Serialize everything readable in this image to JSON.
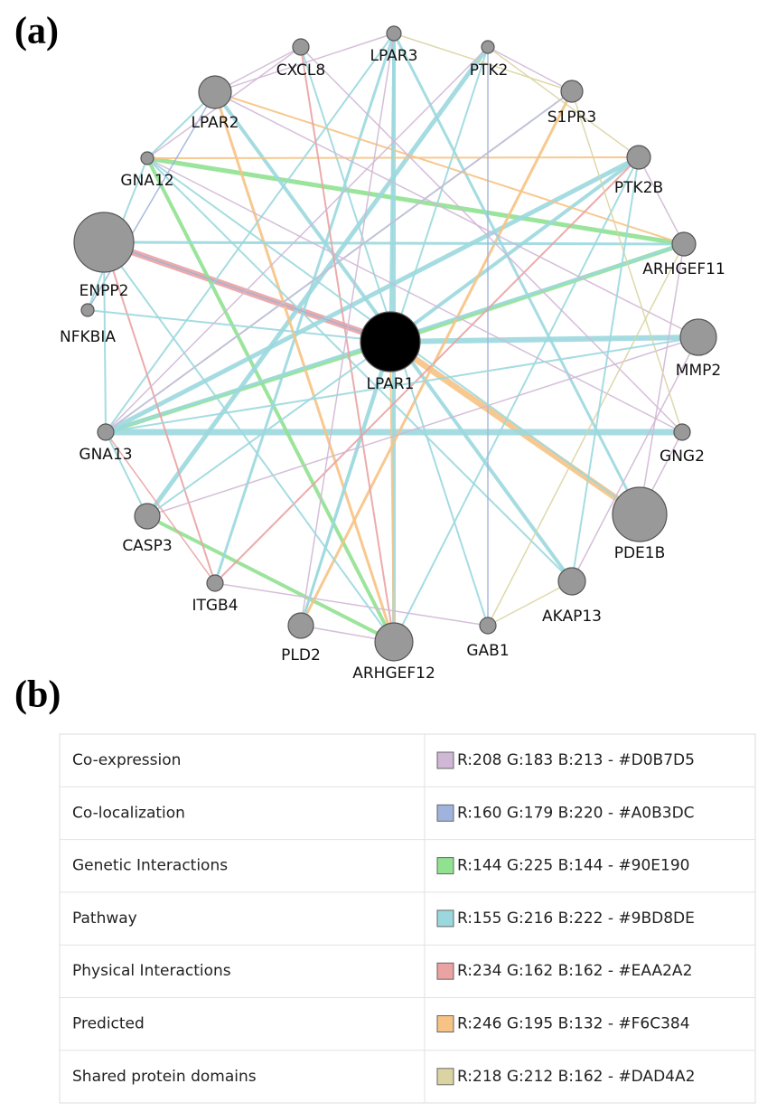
{
  "panel_a": {
    "label": "(a)",
    "nodes": [
      {
        "label": "LPAR1"
      },
      {
        "label": "LPAR3"
      },
      {
        "label": "CXCL8"
      },
      {
        "label": "PTK2"
      },
      {
        "label": "LPAR2"
      },
      {
        "label": "S1PR3"
      },
      {
        "label": "GNA12"
      },
      {
        "label": "PTK2B"
      },
      {
        "label": "ENPP2"
      },
      {
        "label": "ARHGEF11"
      },
      {
        "label": "NFKBIA"
      },
      {
        "label": "MMP2"
      },
      {
        "label": "GNA13"
      },
      {
        "label": "GNG2"
      },
      {
        "label": "CASP3"
      },
      {
        "label": "PDE1B"
      },
      {
        "label": "ITGB4"
      },
      {
        "label": "AKAP13"
      },
      {
        "label": "PLD2"
      },
      {
        "label": "GAB1"
      },
      {
        "label": "ARHGEF12"
      }
    ]
  },
  "panel_b": {
    "label": "(b)",
    "legend": [
      {
        "name": "Co-expression",
        "color": "#D0B7D5",
        "label": "R:208 G:183 B:213 - #D0B7D5"
      },
      {
        "name": "Co-localization",
        "color": "#A0B3DC",
        "label": "R:160 G:179 B:220 - #A0B3DC"
      },
      {
        "name": "Genetic Interactions",
        "color": "#90E190",
        "label": "R:144 G:225 B:144 - #90E190"
      },
      {
        "name": "Pathway",
        "color": "#9BD8DE",
        "label": "R:155 G:216 B:222 - #9BD8DE"
      },
      {
        "name": "Physical Interactions",
        "color": "#EAA2A2",
        "label": "R:234 G:162 B:162 - #EAA2A2"
      },
      {
        "name": "Predicted",
        "color": "#F6C384",
        "label": "R:246 G:195 B:132 - #F6C384"
      },
      {
        "name": "Shared protein domains",
        "color": "#DAD4A2",
        "label": "R:218 G:212 B:162 - #DAD4A2"
      }
    ]
  }
}
